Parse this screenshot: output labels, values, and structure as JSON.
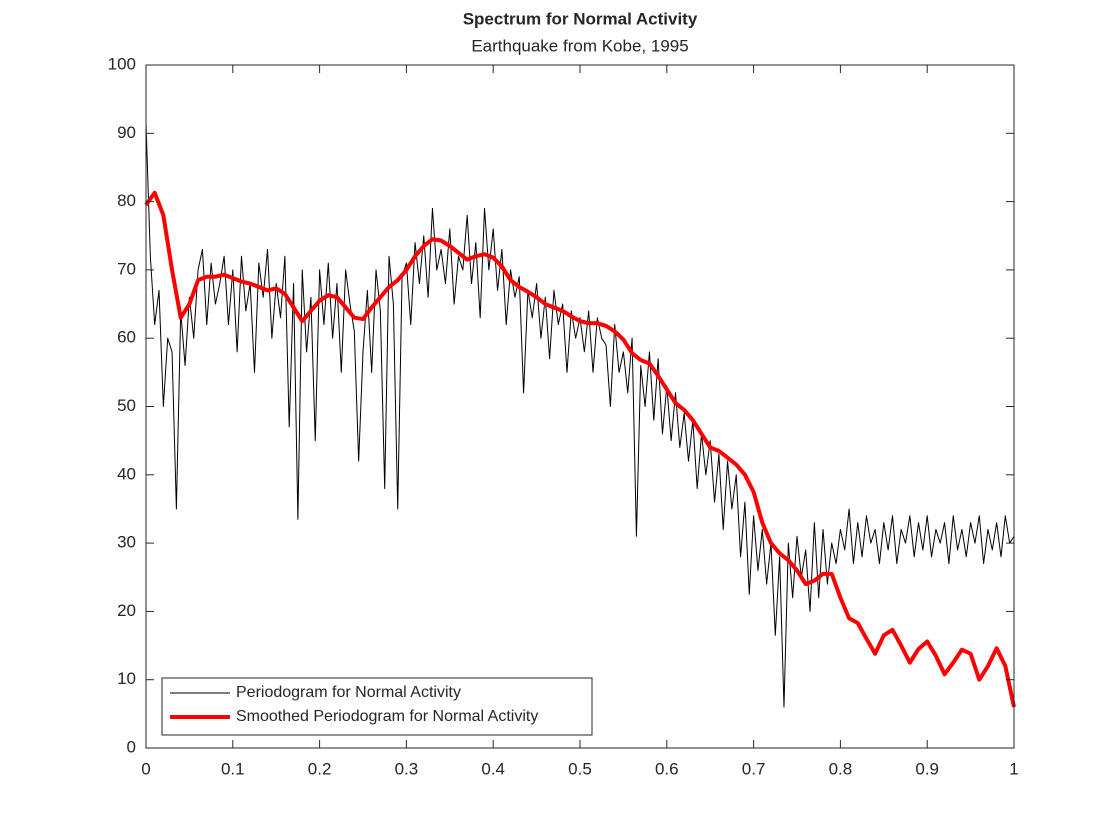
{
  "chart_data": {
    "type": "line",
    "title": "Spectrum for Normal Activity",
    "subtitle": "Earthquake from Kobe, 1995",
    "xlim": [
      0,
      1
    ],
    "ylim": [
      0,
      100
    ],
    "xticks": [
      0,
      0.1,
      0.2,
      0.3,
      0.4,
      0.5,
      0.6,
      0.7,
      0.8,
      0.9,
      1
    ],
    "yticks": [
      0,
      10,
      20,
      30,
      40,
      50,
      60,
      70,
      80,
      90,
      100
    ],
    "grid": false,
    "legend": "southwest",
    "series": [
      {
        "name": "Periodogram for Normal Activity",
        "color": "#000000",
        "width": 1,
        "x": [
          0,
          0.005,
          0.01,
          0.015,
          0.02,
          0.025,
          0.03,
          0.035,
          0.04,
          0.045,
          0.05,
          0.055,
          0.06,
          0.065,
          0.07,
          0.075,
          0.08,
          0.085,
          0.09,
          0.095,
          0.1,
          0.105,
          0.11,
          0.115,
          0.12,
          0.125,
          0.13,
          0.135,
          0.14,
          0.145,
          0.15,
          0.155,
          0.16,
          0.165,
          0.17,
          0.175,
          0.18,
          0.185,
          0.19,
          0.195,
          0.2,
          0.205,
          0.21,
          0.215,
          0.22,
          0.225,
          0.23,
          0.235,
          0.24,
          0.245,
          0.25,
          0.255,
          0.26,
          0.265,
          0.27,
          0.275,
          0.28,
          0.285,
          0.29,
          0.295,
          0.3,
          0.305,
          0.31,
          0.315,
          0.32,
          0.325,
          0.33,
          0.335,
          0.34,
          0.345,
          0.35,
          0.355,
          0.36,
          0.365,
          0.37,
          0.375,
          0.38,
          0.385,
          0.39,
          0.395,
          0.4,
          0.405,
          0.41,
          0.415,
          0.42,
          0.425,
          0.43,
          0.435,
          0.44,
          0.445,
          0.45,
          0.455,
          0.46,
          0.465,
          0.47,
          0.475,
          0.48,
          0.485,
          0.49,
          0.495,
          0.5,
          0.505,
          0.51,
          0.515,
          0.52,
          0.525,
          0.53,
          0.535,
          0.54,
          0.545,
          0.55,
          0.555,
          0.56,
          0.565,
          0.57,
          0.575,
          0.58,
          0.585,
          0.59,
          0.595,
          0.6,
          0.605,
          0.61,
          0.615,
          0.62,
          0.625,
          0.63,
          0.635,
          0.64,
          0.645,
          0.65,
          0.655,
          0.66,
          0.665,
          0.67,
          0.675,
          0.68,
          0.685,
          0.69,
          0.695,
          0.7,
          0.705,
          0.71,
          0.715,
          0.72,
          0.725,
          0.73,
          0.735,
          0.74,
          0.745,
          0.75,
          0.755,
          0.76,
          0.765,
          0.77,
          0.775,
          0.78,
          0.785,
          0.79,
          0.795,
          0.8,
          0.805,
          0.81,
          0.815,
          0.82,
          0.825,
          0.83,
          0.835,
          0.84,
          0.845,
          0.85,
          0.855,
          0.86,
          0.865,
          0.87,
          0.875,
          0.88,
          0.885,
          0.89,
          0.895,
          0.9,
          0.905,
          0.91,
          0.915,
          0.92,
          0.925,
          0.93,
          0.935,
          0.94,
          0.945,
          0.95,
          0.955,
          0.96,
          0.965,
          0.97,
          0.975,
          0.98,
          0.985,
          0.99,
          0.995,
          1
        ],
        "values": [
          91.5,
          72,
          62,
          67,
          50,
          60,
          58,
          35,
          64,
          56,
          66,
          60,
          70,
          73,
          62,
          71,
          65,
          68,
          72,
          62,
          70,
          58,
          72,
          64,
          68,
          55,
          71,
          66,
          73,
          60,
          68,
          63,
          72,
          47,
          68,
          33.5,
          70,
          58,
          66,
          45,
          70,
          62,
          71,
          60,
          68,
          55,
          70,
          65,
          61,
          42,
          58,
          67,
          55,
          70,
          64,
          38,
          72,
          65,
          35,
          69,
          71,
          62,
          74,
          68,
          75,
          66,
          79,
          70,
          73,
          68,
          76,
          65,
          72,
          70,
          78,
          68,
          74,
          63,
          79,
          70,
          76,
          67,
          73,
          62,
          70,
          66,
          69,
          52,
          67,
          63,
          68,
          60,
          66,
          57,
          67,
          62,
          65,
          55,
          64,
          60,
          63,
          58,
          64,
          55,
          63,
          60,
          59,
          50,
          62,
          55,
          58,
          52,
          60,
          31,
          56,
          50,
          58,
          48,
          57,
          46,
          53,
          45,
          52,
          44,
          49,
          42,
          48,
          38,
          46,
          40,
          45,
          36,
          43,
          32,
          42,
          35,
          40,
          28,
          36,
          22.5,
          34,
          26,
          32,
          24,
          30,
          16.5,
          28,
          6,
          30,
          22,
          31,
          25,
          29,
          20,
          33,
          22,
          32,
          24,
          30,
          27,
          32,
          29,
          35,
          27,
          33,
          28,
          34,
          30,
          32,
          27,
          33,
          29,
          34,
          27,
          32,
          30,
          34,
          28,
          33,
          29,
          34,
          28,
          32,
          30,
          33,
          27,
          34,
          29,
          32,
          28,
          33,
          30,
          34,
          27,
          32,
          29,
          33,
          28,
          34,
          30,
          31
        ]
      },
      {
        "name": "Smoothed Periodogram for Normal Activity",
        "color": "#ff0000",
        "width": 4,
        "x": [
          0,
          0.01,
          0.02,
          0.03,
          0.04,
          0.05,
          0.06,
          0.07,
          0.08,
          0.09,
          0.1,
          0.11,
          0.12,
          0.13,
          0.14,
          0.15,
          0.16,
          0.17,
          0.18,
          0.19,
          0.2,
          0.21,
          0.22,
          0.23,
          0.24,
          0.25,
          0.26,
          0.27,
          0.28,
          0.29,
          0.3,
          0.31,
          0.32,
          0.33,
          0.34,
          0.35,
          0.36,
          0.37,
          0.38,
          0.39,
          0.4,
          0.41,
          0.42,
          0.43,
          0.44,
          0.45,
          0.46,
          0.47,
          0.48,
          0.49,
          0.5,
          0.51,
          0.52,
          0.53,
          0.54,
          0.55,
          0.56,
          0.57,
          0.58,
          0.59,
          0.6,
          0.61,
          0.62,
          0.63,
          0.64,
          0.65,
          0.66,
          0.67,
          0.68,
          0.69,
          0.7,
          0.71,
          0.72,
          0.73,
          0.74,
          0.75,
          0.76,
          0.77,
          0.78,
          0.79,
          0.8,
          0.81,
          0.82,
          0.83,
          0.84,
          0.85,
          0.86,
          0.87,
          0.88,
          0.89,
          0.9,
          0.91,
          0.92,
          0.93,
          0.94,
          0.95,
          0.96,
          0.97,
          0.98,
          0.99,
          1
        ],
        "values": [
          79.5,
          81.3,
          78,
          70,
          63,
          65,
          68.5,
          69,
          69,
          69.3,
          68.8,
          68.3,
          68,
          67.5,
          67,
          67.3,
          66.5,
          64.5,
          62.5,
          64,
          65.5,
          66.3,
          66,
          64.5,
          63,
          62.8,
          64.5,
          66,
          67.5,
          68.5,
          70,
          72,
          73.5,
          74.5,
          74.3,
          73.5,
          72.5,
          71.5,
          72,
          72.3,
          71.8,
          70.5,
          68.5,
          67.5,
          66.8,
          66,
          65,
          64.5,
          64,
          63.2,
          62.5,
          62.2,
          62.2,
          61.8,
          61,
          59.8,
          57.8,
          56.8,
          56.3,
          54.5,
          52.5,
          50.5,
          49.5,
          48,
          46,
          44,
          43.5,
          42.5,
          41.5,
          40,
          37.5,
          33,
          30,
          28.5,
          27.5,
          26,
          24,
          24.5,
          25.5,
          25.5,
          22,
          19,
          18.3,
          16,
          13.8,
          16.5,
          17.3,
          15,
          12.5,
          14.5,
          15.6,
          13.5,
          10.8,
          12.5,
          14.4,
          13.8,
          10,
          12,
          14.6,
          12,
          6
        ]
      }
    ]
  }
}
